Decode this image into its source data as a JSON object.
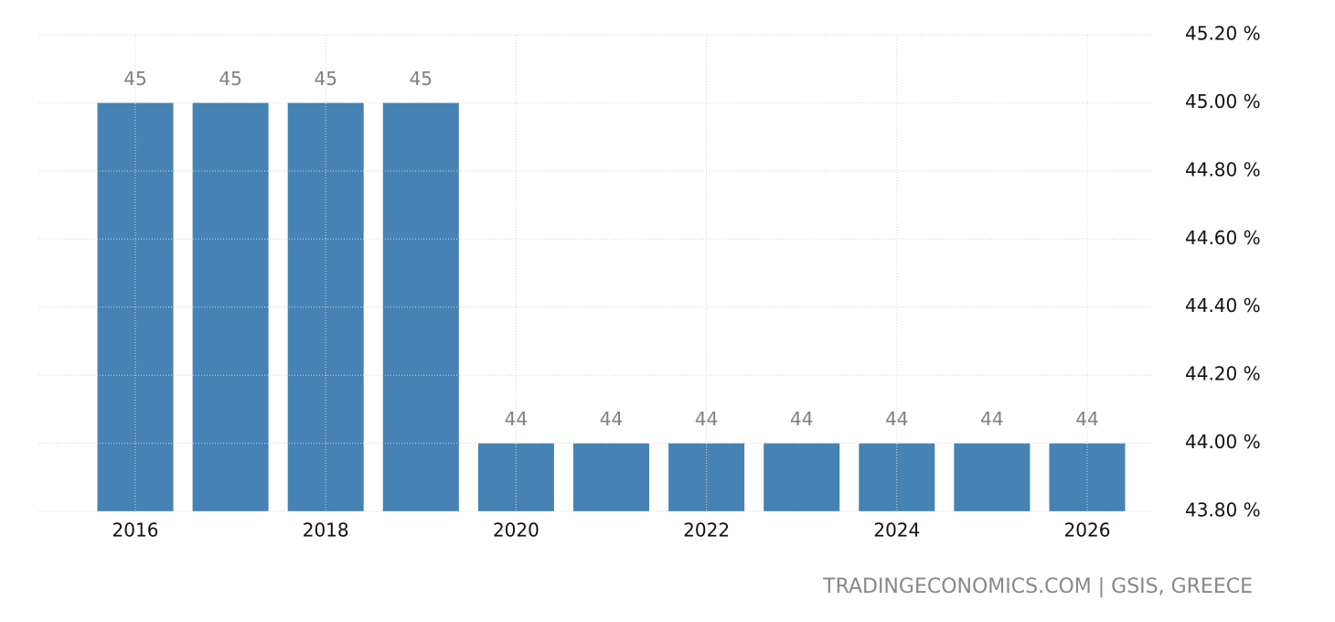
{
  "chart_data": {
    "type": "bar",
    "categories": [
      "2016",
      null,
      "2018",
      null,
      "2020",
      null,
      "2022",
      null,
      "2024",
      null,
      "2026"
    ],
    "values": [
      45,
      45,
      45,
      45,
      44,
      44,
      44,
      44,
      44,
      44,
      44
    ],
    "color": "#4682b4",
    "ylim": [
      43.8,
      45.2
    ],
    "yticks": [
      {
        "value": 43.8,
        "label": "43.80 %"
      },
      {
        "value": 44.0,
        "label": "44.00 %"
      },
      {
        "value": 44.2,
        "label": "44.20 %"
      },
      {
        "value": 44.4,
        "label": "44.40 %"
      },
      {
        "value": 44.6,
        "label": "44.60 %"
      },
      {
        "value": 44.8,
        "label": "44.80 %"
      },
      {
        "value": 45.0,
        "label": "45.00 %"
      },
      {
        "value": 45.2,
        "label": "45.20 %"
      }
    ],
    "grid": true,
    "source": "TRADINGECONOMICS.COM | GSIS, GREECE"
  }
}
